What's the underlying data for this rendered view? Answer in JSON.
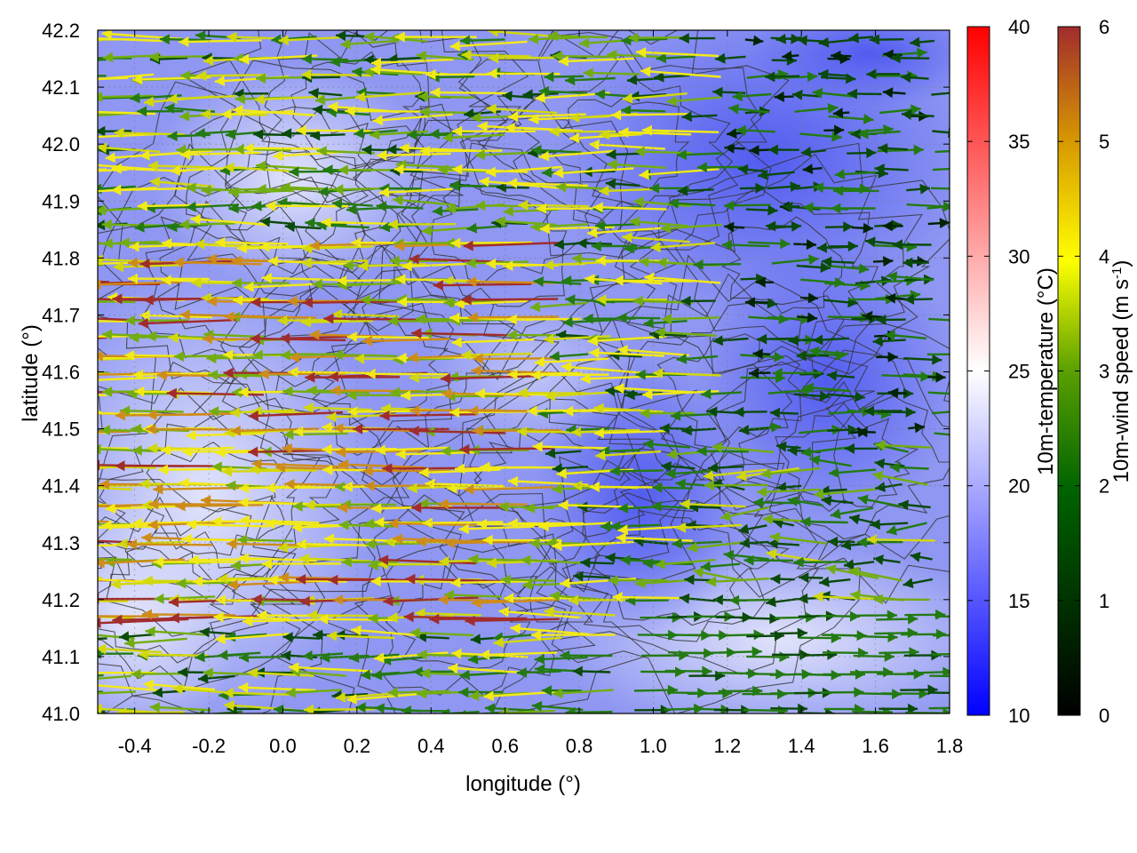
{
  "chart_data": {
    "type": "heatmap",
    "xlabel": "longitude (°)",
    "ylabel": "latitude (°)",
    "xlim": [
      -0.5,
      1.8
    ],
    "ylim": [
      41.0,
      42.2
    ],
    "x_ticks": [
      "-0.4",
      "-0.2",
      "0.0",
      "0.2",
      "0.4",
      "0.6",
      "0.8",
      "1.0",
      "1.2",
      "1.4",
      "1.6",
      "1.8"
    ],
    "y_ticks": [
      "41.0",
      "41.1",
      "41.2",
      "41.3",
      "41.4",
      "41.5",
      "41.6",
      "41.7",
      "41.8",
      "41.9",
      "42.0",
      "42.1",
      "42.2"
    ],
    "grid": true,
    "colorbars": [
      {
        "name": "temperature",
        "label": "10m-temperature (°C)",
        "range": [
          10,
          40
        ],
        "ticks": [
          "10",
          "15",
          "20",
          "25",
          "30",
          "35",
          "40"
        ],
        "colors": [
          "#0000ff",
          "#ffffff",
          "#ff0000"
        ]
      },
      {
        "name": "windspeed",
        "label_main": "10m-wind speed (m s",
        "label_sup": "-1",
        "label_end": ")",
        "range": [
          0,
          6
        ],
        "ticks": [
          "0",
          "1",
          "2",
          "3",
          "4",
          "5",
          "6"
        ],
        "colors": [
          "#000000",
          "#006400",
          "#5aa000",
          "#ffff00",
          "#d89a00",
          "#a02c2c"
        ]
      }
    ],
    "background_temperature_c": [
      17,
      23
    ],
    "overlays": [
      "terrain contours",
      "10 m wind vectors"
    ]
  }
}
